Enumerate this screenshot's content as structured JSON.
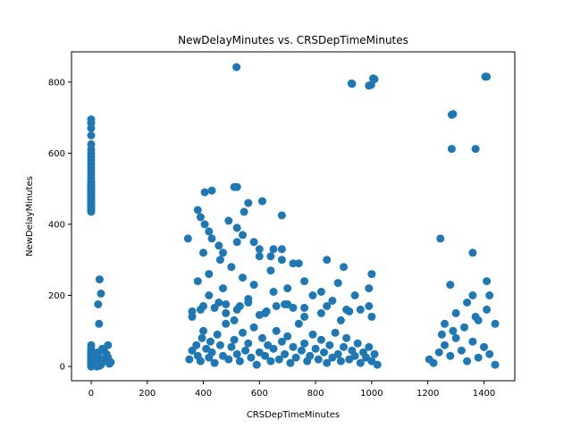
{
  "chart_data": {
    "type": "scatter",
    "title": "NewDelayMinutes vs. CRSDepTimeMinutes",
    "xlabel": "CRSDepTimeMinutes",
    "ylabel": "NewDelayMinutes",
    "xlim": [
      -70,
      1510
    ],
    "ylim": [
      -40,
      885
    ],
    "xticks": [
      0,
      200,
      400,
      600,
      800,
      1000,
      1200,
      1400
    ],
    "yticks": [
      0,
      200,
      400,
      600,
      800
    ],
    "grid": false,
    "legend": "none",
    "marker_color": "#1f77b4",
    "series": [
      {
        "x": [
          0,
          0,
          0,
          0,
          0,
          0,
          0,
          0,
          0,
          0,
          0,
          0,
          0,
          0,
          0,
          0,
          0,
          0,
          0,
          0,
          0,
          0,
          0,
          0,
          0,
          0,
          0,
          0,
          0,
          0,
          0,
          0,
          0,
          0,
          0,
          0,
          0,
          0,
          0,
          0,
          0,
          0,
          0,
          0,
          0,
          0,
          0,
          0,
          0,
          0,
          30,
          25,
          28,
          35,
          28,
          20,
          25,
          45,
          60,
          15,
          35,
          50,
          65,
          40,
          30,
          55,
          70,
          20,
          45,
          60,
          345,
          350,
          360,
          375,
          380,
          390,
          395,
          400,
          410,
          420,
          425,
          430,
          440,
          450,
          460,
          470,
          480,
          490,
          500,
          510,
          520,
          530,
          540,
          550,
          560,
          570,
          580,
          590,
          600,
          610,
          620,
          630,
          640,
          650,
          660,
          670,
          680,
          690,
          700,
          710,
          720,
          730,
          740,
          750,
          760,
          770,
          780,
          790,
          800,
          810,
          820,
          830,
          840,
          850,
          860,
          870,
          880,
          890,
          900,
          910,
          920,
          930,
          940,
          950,
          960,
          970,
          980,
          990,
          1000,
          1010,
          1020,
          360,
          390,
          420,
          455,
          480,
          510,
          530,
          560,
          600,
          625,
          650,
          690,
          720,
          760,
          790,
          820,
          860,
          890,
          920,
          960,
          1000,
          380,
          420,
          470,
          500,
          540,
          580,
          640,
          700,
          760,
          820,
          880,
          940,
          990,
          400,
          460,
          520,
          600,
          680,
          740,
          840,
          900,
          1000,
          1205,
          1220,
          1240,
          1260,
          1280,
          1300,
          1320,
          1340,
          1360,
          1380,
          1400,
          1420,
          1440,
          1260,
          1300,
          1340,
          1380,
          1420,
          1250,
          1290,
          1330,
          1370,
          1410,
          1440,
          1280,
          1360,
          1410,
          380,
          390,
          405,
          420,
          430,
          455,
          470,
          490,
          520,
          540,
          580,
          600,
          640,
          680,
          720,
          360,
          400,
          440,
          480,
          520,
          560,
          620,
          660,
          700,
          760,
          840,
          910,
          990,
          520,
          545,
          405,
          430,
          510,
          560,
          610,
          680,
          650,
          930,
          990,
          1005,
          1290,
          1370,
          1410,
          1285,
          1245,
          1360
        ],
        "y": [
          695,
          685,
          670,
          650,
          625,
          610,
          600,
          590,
          580,
          570,
          560,
          550,
          540,
          530,
          520,
          515,
          510,
          505,
          500,
          495,
          490,
          485,
          480,
          475,
          470,
          465,
          460,
          455,
          450,
          445,
          440,
          435,
          60,
          50,
          40,
          30,
          25,
          20,
          15,
          10,
          5,
          2,
          0,
          8,
          12,
          18,
          22,
          35,
          45,
          3,
          245,
          175,
          120,
          205,
          25,
          30,
          40,
          15,
          60,
          10,
          5,
          20,
          8,
          50,
          2,
          35,
          12,
          0,
          45,
          25,
          360,
          20,
          45,
          60,
          30,
          15,
          80,
          100,
          50,
          25,
          70,
          40,
          10,
          90,
          60,
          30,
          120,
          20,
          55,
          75,
          35,
          15,
          95,
          45,
          65,
          25,
          110,
          5,
          40,
          80,
          30,
          60,
          15,
          50,
          100,
          20,
          70,
          35,
          85,
          10,
          55,
          25,
          120,
          45,
          65,
          15,
          30,
          90,
          50,
          20,
          75,
          40,
          10,
          60,
          25,
          95,
          35,
          15,
          55,
          80,
          20,
          45,
          30,
          65,
          10,
          40,
          25,
          55,
          15,
          35,
          5,
          140,
          160,
          200,
          180,
          150,
          130,
          170,
          190,
          145,
          155,
          210,
          175,
          165,
          140,
          200,
          150,
          185,
          130,
          155,
          160,
          140,
          240,
          260,
          220,
          280,
          250,
          230,
          270,
          220,
          240,
          210,
          235,
          200,
          220,
          320,
          300,
          350,
          310,
          330,
          290,
          300,
          280,
          260,
          20,
          10,
          40,
          60,
          30,
          80,
          45,
          15,
          70,
          25,
          55,
          35,
          5,
          120,
          150,
          180,
          130,
          200,
          90,
          100,
          110,
          140,
          160,
          120,
          230,
          200,
          240,
          440,
          420,
          400,
          380,
          360,
          340,
          320,
          410,
          390,
          370,
          350,
          330,
          310,
          300,
          290,
          155,
          170,
          165,
          175,
          160,
          180,
          150,
          170,
          175,
          165,
          170,
          160,
          170,
          505,
          435,
          490,
          495,
          505,
          460,
          465,
          425,
          330,
          795,
          790,
          810,
          710,
          612,
          815,
          612,
          360,
          320
        ]
      },
      {
        "x": [
          518,
          928,
          998,
          1010,
          1405,
          1285
        ],
        "y": [
          842,
          796,
          792,
          808,
          815,
          708
        ]
      }
    ]
  }
}
